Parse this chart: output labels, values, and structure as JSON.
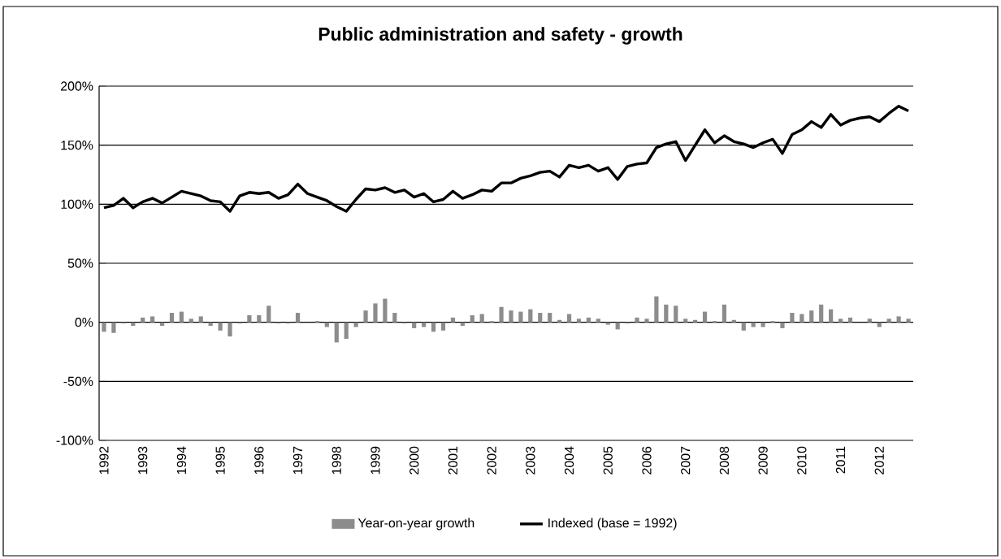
{
  "chart_data": {
    "type": "bar",
    "title": "Public administration and safety - growth",
    "categories": [
      "1992",
      null,
      null,
      null,
      "1993",
      null,
      null,
      null,
      "1994",
      null,
      null,
      null,
      "1995",
      null,
      null,
      null,
      "1996",
      null,
      null,
      null,
      "1997",
      null,
      null,
      null,
      "1998",
      null,
      null,
      null,
      "1999",
      null,
      null,
      null,
      "2000",
      null,
      null,
      null,
      "2001",
      null,
      null,
      null,
      "2002",
      null,
      null,
      null,
      "2003",
      null,
      null,
      null,
      "2004",
      null,
      null,
      null,
      "2005",
      null,
      null,
      null,
      "2006",
      null,
      null,
      null,
      "2007",
      null,
      null,
      null,
      "2008",
      null,
      null,
      null,
      "2009",
      null,
      null,
      null,
      "2010",
      null,
      null,
      null,
      "2011",
      null,
      null,
      null,
      "2012",
      null,
      null,
      null
    ],
    "series": [
      {
        "name": "Year-on-year growth",
        "color": "#8c8c8c",
        "values": [
          -8,
          -9,
          -1,
          -3,
          4,
          5,
          -3,
          8,
          9,
          3,
          5,
          -3,
          -7,
          -12,
          -1,
          6,
          6,
          14,
          -1,
          -1,
          8,
          0,
          1,
          -4,
          -17,
          -14,
          -4,
          10,
          16,
          20,
          8,
          -1,
          -5,
          -4,
          -8,
          -7,
          4,
          -3,
          6,
          7,
          1,
          13,
          10,
          9,
          11,
          8,
          8,
          2,
          7,
          3,
          4,
          3,
          -2,
          -6,
          -1,
          4,
          3,
          22,
          15,
          14,
          3,
          2,
          9,
          1,
          15,
          2,
          -7,
          -4,
          -4,
          1,
          -5,
          8,
          7,
          10,
          15,
          11,
          3,
          4,
          0,
          3,
          -4,
          3,
          5,
          3
        ]
      },
      {
        "name": "Indexed (base = 1992)",
        "type": "line",
        "color": "#000000",
        "values": [
          97,
          99,
          105,
          97,
          102,
          105,
          101,
          106,
          111,
          109,
          107,
          103,
          102,
          94,
          107,
          110,
          109,
          110,
          105,
          108,
          117,
          109,
          106,
          103,
          98,
          94,
          104,
          113,
          112,
          114,
          110,
          112,
          106,
          109,
          102,
          104,
          111,
          105,
          108,
          112,
          111,
          118,
          118,
          122,
          124,
          127,
          128,
          123,
          133,
          131,
          133,
          128,
          131,
          121,
          132,
          134,
          135,
          148,
          151,
          153,
          137,
          150,
          163,
          152,
          158,
          153,
          151,
          148,
          152,
          155,
          143,
          159,
          163,
          170,
          165,
          176,
          167,
          171,
          173,
          174,
          170,
          177,
          183,
          179
        ]
      }
    ],
    "ylim": [
      -100,
      200
    ],
    "yticks": [
      {
        "value": -100,
        "label": "-100%"
      },
      {
        "value": -50,
        "label": "-50%"
      },
      {
        "value": 0,
        "label": "0%"
      },
      {
        "value": 50,
        "label": "50%"
      },
      {
        "value": 100,
        "label": "100%"
      },
      {
        "value": 150,
        "label": "150%"
      },
      {
        "value": 200,
        "label": "200%"
      }
    ],
    "grid": "y",
    "legend": "bottom"
  }
}
